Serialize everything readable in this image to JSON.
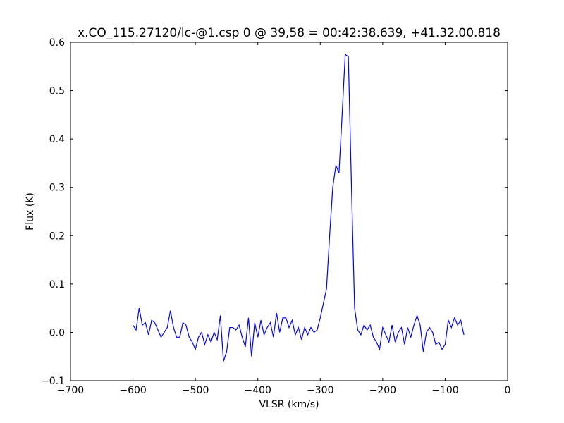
{
  "chart_data": {
    "type": "line",
    "title": "x.CO_115.27120/lc-@1.csp 0 @ 39,58 = 00:42:38.639, +41.32.00.818",
    "x_label": "VLSR (km/s)",
    "y_label": "Flux (K)",
    "x": [
      -600,
      -595,
      -590,
      -585,
      -580,
      -575,
      -570,
      -565,
      -560,
      -555,
      -550,
      -545,
      -540,
      -535,
      -530,
      -525,
      -520,
      -515,
      -510,
      -505,
      -500,
      -495,
      -490,
      -485,
      -480,
      -475,
      -470,
      -465,
      -460,
      -455,
      -450,
      -445,
      -440,
      -435,
      -430,
      -425,
      -420,
      -415,
      -410,
      -405,
      -400,
      -395,
      -390,
      -385,
      -380,
      -375,
      -370,
      -365,
      -360,
      -355,
      -350,
      -345,
      -340,
      -335,
      -330,
      -325,
      -320,
      -315,
      -310,
      -305,
      -300,
      -295,
      -290,
      -285,
      -280,
      -275,
      -270,
      -265,
      -260,
      -255,
      -250,
      -245,
      -240,
      -235,
      -230,
      -225,
      -220,
      -215,
      -210,
      -205,
      -200,
      -195,
      -190,
      -185,
      -180,
      -175,
      -170,
      -165,
      -160,
      -155,
      -150,
      -145,
      -140,
      -135,
      -130,
      -125,
      -120,
      -115,
      -110,
      -105,
      -100,
      -95,
      -90,
      -85,
      -80,
      -75,
      -70
    ],
    "series": [
      {
        "color": "#0000ff",
        "values": [
          0.015,
          0.005,
          0.05,
          0.015,
          0.02,
          -0.005,
          0.025,
          0.02,
          0.005,
          -0.01,
          0.0,
          0.01,
          0.045,
          0.01,
          -0.01,
          -0.01,
          0.02,
          0.015,
          -0.01,
          -0.02,
          -0.035,
          -0.01,
          0.0,
          -0.025,
          -0.005,
          -0.02,
          0.0,
          -0.015,
          0.035,
          -0.06,
          -0.04,
          0.01,
          0.01,
          0.005,
          0.015,
          -0.01,
          -0.03,
          0.03,
          -0.05,
          0.02,
          -0.01,
          0.025,
          -0.005,
          0.01,
          0.02,
          -0.01,
          0.04,
          0.0,
          0.03,
          0.03,
          0.01,
          0.025,
          -0.005,
          0.01,
          -0.015,
          0.01,
          -0.005,
          0.01,
          0.0,
          0.005,
          0.03,
          0.06,
          0.09,
          0.2,
          0.3,
          0.345,
          0.33,
          0.45,
          0.575,
          0.57,
          0.3,
          0.05,
          0.005,
          -0.005,
          0.015,
          0.005,
          0.015,
          -0.01,
          -0.02,
          -0.035,
          0.01,
          -0.005,
          -0.02,
          0.015,
          -0.02,
          0.0,
          0.01,
          -0.025,
          0.01,
          -0.01,
          0.015,
          0.035,
          0.015,
          -0.04,
          0.0,
          0.01,
          0.0,
          -0.025,
          -0.02,
          -0.035,
          -0.025,
          0.025,
          0.01,
          0.03,
          0.015,
          0.025,
          -0.005
        ]
      }
    ],
    "xlim": [
      -700,
      0
    ],
    "xticks": [
      {
        "value": -700,
        "label": "−700"
      },
      {
        "value": -600,
        "label": "−600"
      },
      {
        "value": -500,
        "label": "−500"
      },
      {
        "value": -400,
        "label": "−400"
      },
      {
        "value": -300,
        "label": "−300"
      },
      {
        "value": -200,
        "label": "−200"
      },
      {
        "value": -100,
        "label": "−100"
      },
      0
    ],
    "ylim": [
      -0.1,
      0.6
    ],
    "yticks": [
      {
        "value": -0.1,
        "label": "−0.1"
      },
      {
        "value": 0,
        "label": "0.0"
      },
      0.1,
      0.2,
      0.3,
      0.4,
      0.5,
      0.6
    ],
    "grid": false
  }
}
